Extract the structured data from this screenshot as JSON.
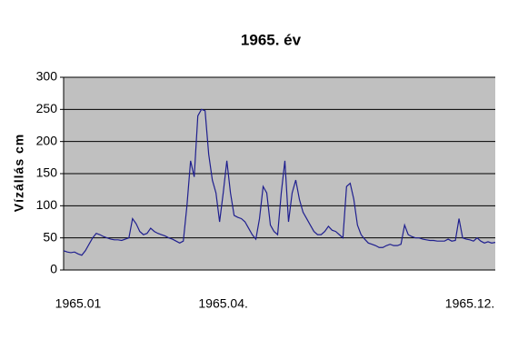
{
  "chart_data": {
    "type": "line",
    "title": "1965. év",
    "y_label": "Vízállás cm",
    "categories": [
      null,
      null,
      null,
      null,
      "1965.01",
      null,
      null,
      null,
      null,
      null,
      null,
      null,
      null,
      null,
      null,
      null,
      null,
      null,
      null,
      null,
      null,
      null,
      null,
      null,
      null,
      null,
      null,
      null,
      null,
      null,
      null,
      null,
      null,
      null,
      null,
      null,
      null,
      null,
      null,
      null,
      null,
      null,
      null,
      null,
      "1965.04.",
      null,
      null,
      null,
      null,
      null,
      null,
      null,
      null,
      null,
      null,
      null,
      null,
      null,
      null,
      null,
      null,
      null,
      null,
      null,
      null,
      null,
      null,
      null,
      null,
      null,
      null,
      null,
      null,
      null,
      null,
      null,
      null,
      null,
      null,
      null,
      null,
      null,
      null,
      null,
      null,
      null,
      null,
      null,
      null,
      null,
      null,
      null,
      null,
      null,
      null,
      null,
      null,
      null,
      null,
      null,
      null,
      null,
      null,
      null,
      null,
      null,
      null,
      null,
      null,
      null,
      null,
      null,
      "1965.12.",
      null,
      null,
      null,
      null,
      null,
      null,
      null
    ],
    "series": [
      {
        "name": "Vízállás",
        "color": "#1f1f8f",
        "values": [
          30,
          28,
          27,
          28,
          25,
          23,
          30,
          40,
          50,
          57,
          55,
          52,
          50,
          48,
          47,
          47,
          46,
          48,
          50,
          80,
          72,
          60,
          55,
          57,
          65,
          60,
          57,
          55,
          53,
          50,
          48,
          45,
          42,
          45,
          100,
          170,
          145,
          240,
          250,
          248,
          180,
          140,
          120,
          75,
          120,
          170,
          120,
          85,
          82,
          80,
          75,
          65,
          55,
          48,
          80,
          130,
          120,
          70,
          60,
          55,
          120,
          170,
          75,
          120,
          140,
          110,
          90,
          80,
          70,
          60,
          55,
          55,
          60,
          68,
          62,
          60,
          55,
          50,
          130,
          135,
          110,
          70,
          55,
          48,
          42,
          40,
          38,
          35,
          35,
          38,
          40,
          38,
          38,
          40,
          70,
          55,
          52,
          50,
          50,
          48,
          47,
          46,
          46,
          45,
          45,
          45,
          48,
          45,
          46,
          80,
          50,
          48,
          47,
          45,
          50,
          45,
          42,
          44,
          42,
          43
        ]
      }
    ],
    "ylim": [
      0,
      300
    ],
    "yticks": [
      0,
      50,
      100,
      150,
      200,
      250,
      300
    ],
    "grid": true
  }
}
